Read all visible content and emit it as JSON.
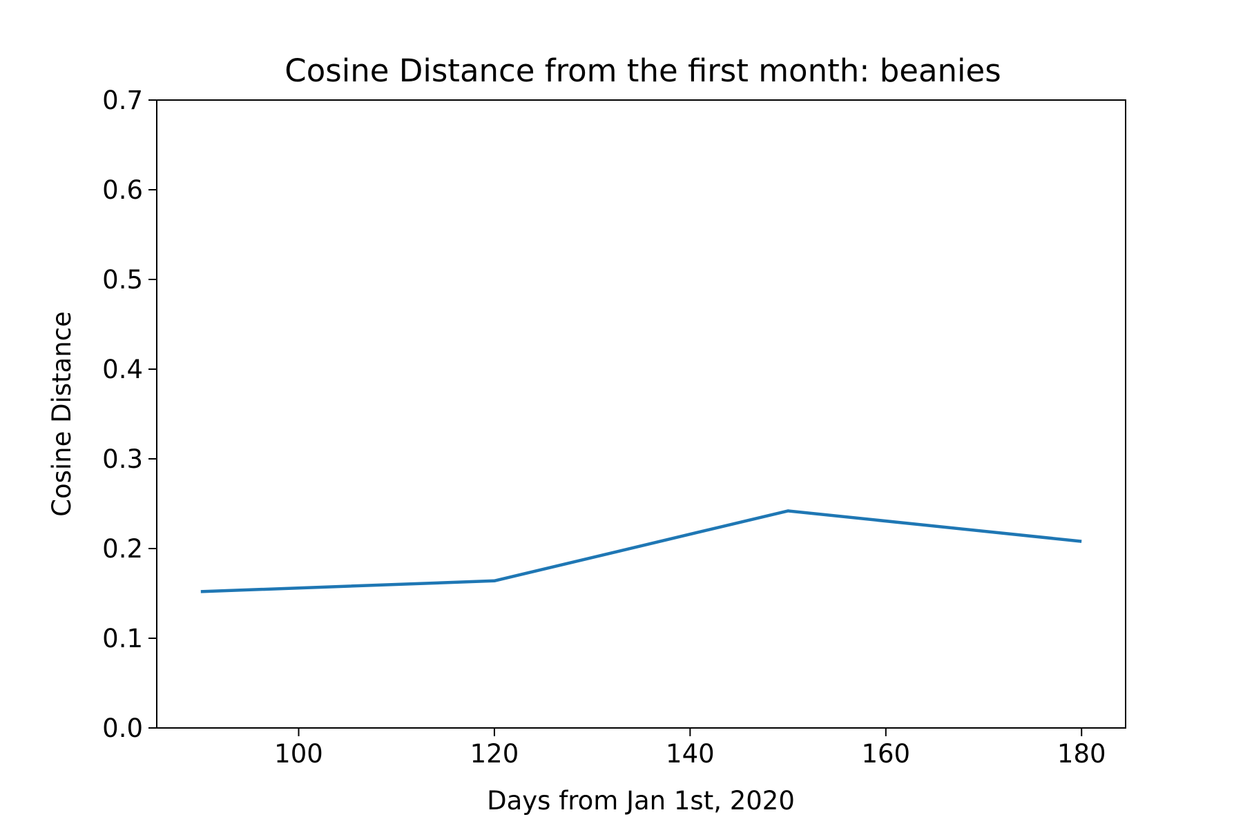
{
  "chart_data": {
    "type": "line",
    "title": "Cosine Distance from the first month: beanies",
    "xlabel": "Days from Jan 1st, 2020",
    "ylabel": "Cosine Distance",
    "xlim": [
      85.5,
      184.5
    ],
    "ylim": [
      0.0,
      0.7
    ],
    "xticks": [
      100,
      120,
      140,
      160,
      180
    ],
    "xtick_labels": [
      "100",
      "120",
      "140",
      "160",
      "180"
    ],
    "yticks": [
      0.0,
      0.1,
      0.2,
      0.3,
      0.4,
      0.5,
      0.6,
      0.7
    ],
    "ytick_labels": [
      "0.0",
      "0.1",
      "0.2",
      "0.3",
      "0.4",
      "0.5",
      "0.6",
      "0.7"
    ],
    "grid": false,
    "series": [
      {
        "color": "#1f77b4",
        "x": [
          90,
          120,
          150,
          180
        ],
        "y": [
          0.152,
          0.164,
          0.242,
          0.208
        ]
      }
    ]
  }
}
